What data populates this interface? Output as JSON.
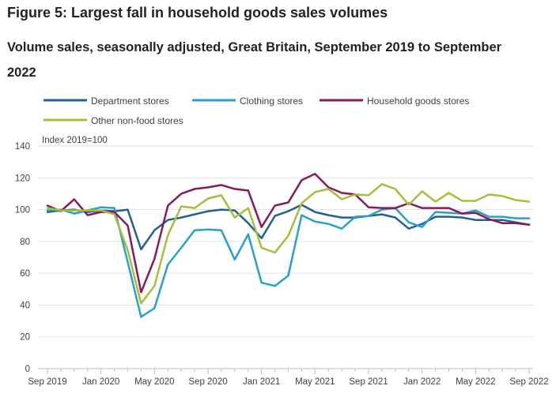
{
  "header": {
    "title": "Figure 5: Largest fall in household goods sales volumes",
    "subtitle": "Volume sales, seasonally adjusted, Great Britain, September 2019 to September 2022"
  },
  "chart_data": {
    "type": "line",
    "ylabel": "Index 2019=100",
    "ylim": [
      0,
      140
    ],
    "yticks": [
      0,
      20,
      40,
      60,
      80,
      100,
      120,
      140
    ],
    "x": [
      "Sep 2019",
      "Oct 2019",
      "Nov 2019",
      "Dec 2019",
      "Jan 2020",
      "Feb 2020",
      "Mar 2020",
      "Apr 2020",
      "May 2020",
      "Jun 2020",
      "Jul 2020",
      "Aug 2020",
      "Sep 2020",
      "Oct 2020",
      "Nov 2020",
      "Dec 2020",
      "Jan 2021",
      "Feb 2021",
      "Mar 2021",
      "Apr 2021",
      "May 2021",
      "Jun 2021",
      "Jul 2021",
      "Aug 2021",
      "Sep 2021",
      "Oct 2021",
      "Nov 2021",
      "Dec 2021",
      "Jan 2022",
      "Feb 2022",
      "Mar 2022",
      "Apr 2022",
      "May 2022",
      "Jun 2022",
      "Jul 2022",
      "Aug 2022",
      "Sep 2022"
    ],
    "xtick_labels": [
      "Sep 2019",
      "Jan 2020",
      "May 2020",
      "Sep 2020",
      "Jan 2021",
      "May 2021",
      "Sep 2021",
      "Jan 2022",
      "May 2022",
      "Sep 2022"
    ],
    "grid": "horizontal",
    "legend_position": "top",
    "series": [
      {
        "name": "Department stores",
        "color": "#206095",
        "values": [
          98.5,
          99.5,
          100,
          98.5,
          99.5,
          99,
          100,
          75,
          87,
          93.5,
          95,
          97,
          99,
          100,
          99.5,
          91.5,
          82,
          96,
          99,
          103,
          98.5,
          96.5,
          95,
          95,
          96,
          97,
          95,
          88,
          91,
          95.5,
          95.5,
          95,
          93.5,
          93.5,
          93.5,
          92,
          90.5
        ]
      },
      {
        "name": "Clothing stores",
        "color": "#27a0cc",
        "values": [
          99.5,
          100,
          97.5,
          99.5,
          101.5,
          101,
          67,
          32.5,
          38,
          65.5,
          76,
          87,
          87.5,
          87,
          68.5,
          84.5,
          54,
          52,
          58.5,
          96.5,
          92.5,
          91,
          88,
          95.5,
          96,
          100,
          101,
          92,
          89,
          98.5,
          98,
          97.5,
          99.5,
          95.5,
          95.5,
          94.5,
          94.5
        ]
      },
      {
        "name": "Household goods stores",
        "color": "#871a5b",
        "values": [
          102.5,
          99,
          106.5,
          96.5,
          98.5,
          98.5,
          90,
          48,
          69,
          102.5,
          110,
          113,
          114,
          115.5,
          113,
          112,
          89,
          102.5,
          104.5,
          118.5,
          122.5,
          114,
          110.5,
          109.5,
          101.5,
          101,
          101,
          104,
          101,
          101,
          101,
          97.5,
          98,
          94,
          91.5,
          91.5,
          90.5
        ]
      },
      {
        "name": "Other non-food stores",
        "color": "#a8bd3a",
        "values": [
          101,
          99.5,
          99.5,
          99.5,
          99.5,
          97,
          74.5,
          41,
          52,
          84,
          102,
          101,
          107,
          109,
          95,
          101,
          76,
          73,
          83.5,
          104,
          111,
          113,
          106.5,
          109.5,
          109,
          116,
          113,
          103,
          111.5,
          105,
          110.5,
          105.5,
          105.5,
          109.5,
          108.5,
          106,
          105
        ]
      }
    ]
  }
}
